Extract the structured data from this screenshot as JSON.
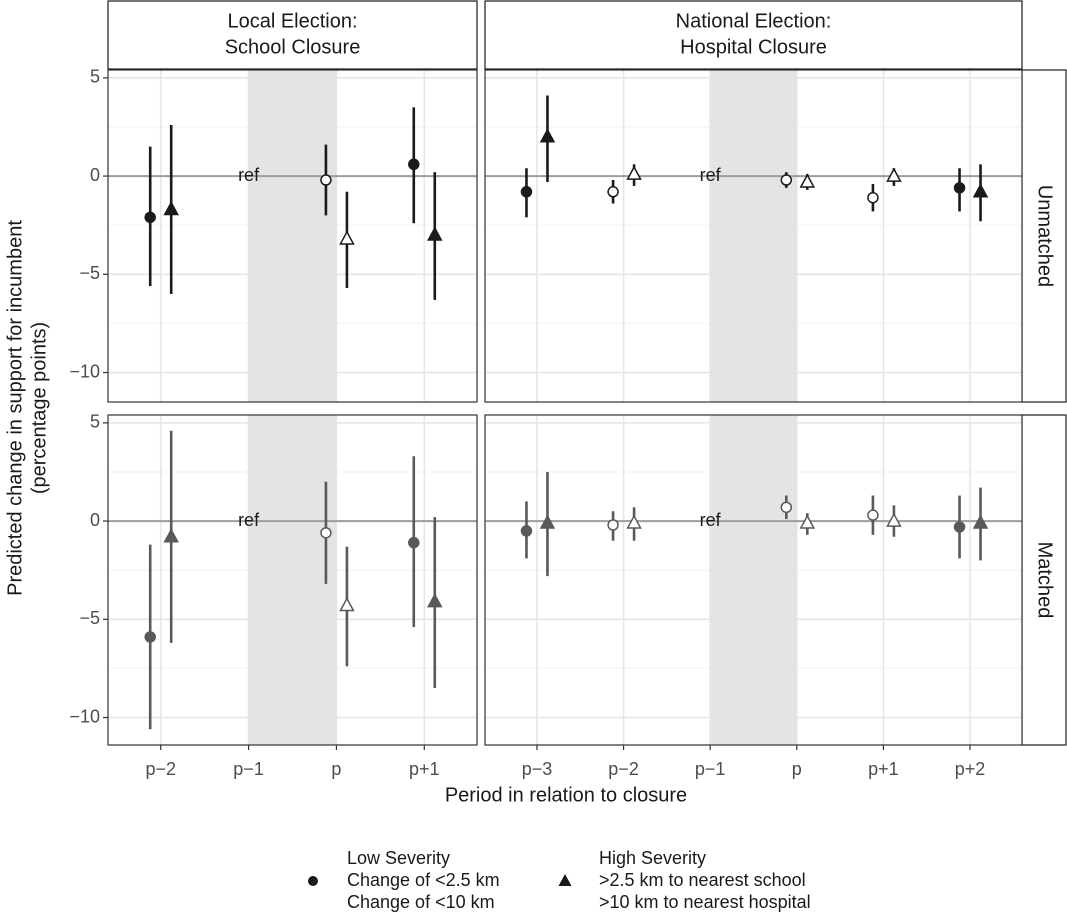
{
  "x_label": "Period in relation to closure",
  "y_label": [
    "Predicted change in support for incumbent",
    "(percentage points)"
  ],
  "legend": [
    {
      "shape": "circle",
      "lines": [
        "Low Severity",
        "Change of <2.5 km",
        "Change of <10 km"
      ]
    },
    {
      "shape": "triangle",
      "lines": [
        "High Severity",
        ">2.5 km to nearest school",
        ">10 km to nearest hospital"
      ]
    }
  ],
  "columns": [
    {
      "label": [
        "Local Election:",
        "School Closure"
      ],
      "categories": [
        "p−2",
        "p−1",
        "p",
        "p+1"
      ],
      "ref_index": 1
    },
    {
      "label": [
        "National Election:",
        "Hospital Closure"
      ],
      "categories": [
        "p−3",
        "p−2",
        "p−1",
        "p",
        "p+1",
        "p+2"
      ],
      "ref_index": 2
    }
  ],
  "rows": [
    {
      "label": "Unmatched",
      "color": "#1a1a1a",
      "ylim": [
        -11.5,
        5.4
      ],
      "hline": 0,
      "yticks": [
        {
          "value": -10,
          "label": "−10"
        },
        {
          "value": -5,
          "label": "−5"
        },
        0,
        5
      ],
      "minor_yticks": [
        -7.5,
        -2.5,
        2.5
      ]
    },
    {
      "label": "Matched",
      "color": "#595959",
      "ylim": [
        -11.4,
        5.4
      ],
      "hline": 0,
      "yticks": [
        {
          "value": -10,
          "label": "−10"
        },
        {
          "value": -5,
          "label": "−5"
        },
        0,
        5
      ],
      "minor_yticks": [
        -7.5,
        -2.5,
        2.5
      ]
    }
  ],
  "chart_data": [
    {
      "type": "errorbar",
      "ref_label": "ref",
      "series": [
        {
          "shape": "circle",
          "values": [
            -2.1,
            null,
            -0.2,
            0.6
          ],
          "lower": [
            -5.6,
            null,
            -2.0,
            -2.4
          ],
          "upper": [
            1.5,
            null,
            1.6,
            3.5
          ],
          "filled": [
            true,
            null,
            false,
            true
          ]
        },
        {
          "shape": "triangle",
          "values": [
            -1.7,
            null,
            -3.2,
            -3.0
          ],
          "lower": [
            -6.0,
            null,
            -5.7,
            -6.3
          ],
          "upper": [
            2.6,
            null,
            -0.8,
            0.2
          ],
          "filled": [
            true,
            null,
            false,
            true
          ]
        }
      ]
    },
    {
      "type": "errorbar",
      "ref_label": "ref",
      "series": [
        {
          "shape": "circle",
          "values": [
            -0.8,
            -0.8,
            null,
            -0.2,
            -1.1,
            -0.6
          ],
          "lower": [
            -2.1,
            -1.4,
            null,
            -0.6,
            -1.8,
            -1.8
          ],
          "upper": [
            0.4,
            -0.2,
            null,
            0.2,
            -0.4,
            0.4
          ],
          "filled": [
            true,
            false,
            null,
            false,
            false,
            true
          ]
        },
        {
          "shape": "triangle",
          "values": [
            2.0,
            0.1,
            null,
            -0.3,
            0.0,
            -0.8
          ],
          "lower": [
            -0.3,
            -0.5,
            null,
            -0.7,
            -0.5,
            -2.3
          ],
          "upper": [
            4.1,
            0.6,
            null,
            0.1,
            0.4,
            0.6
          ],
          "filled": [
            true,
            false,
            null,
            false,
            false,
            true
          ]
        }
      ]
    },
    {
      "type": "errorbar",
      "ref_label": "ref",
      "series": [
        {
          "shape": "circle",
          "values": [
            -5.9,
            null,
            -0.6,
            -1.1
          ],
          "lower": [
            -10.6,
            null,
            -3.2,
            -5.4
          ],
          "upper": [
            -1.2,
            null,
            2.0,
            3.3
          ],
          "filled": [
            true,
            null,
            false,
            true
          ]
        },
        {
          "shape": "triangle",
          "values": [
            -0.8,
            null,
            -4.3,
            -4.1
          ],
          "lower": [
            -6.2,
            null,
            -7.4,
            -8.5
          ],
          "upper": [
            4.6,
            null,
            -1.3,
            0.2
          ],
          "filled": [
            true,
            null,
            false,
            true
          ]
        }
      ]
    },
    {
      "type": "errorbar",
      "ref_label": "ref",
      "series": [
        {
          "shape": "circle",
          "values": [
            -0.5,
            -0.2,
            null,
            0.7,
            0.3,
            -0.3
          ],
          "lower": [
            -1.9,
            -1.0,
            null,
            0.1,
            -0.7,
            -1.9
          ],
          "upper": [
            1.0,
            0.5,
            null,
            1.3,
            1.3,
            1.3
          ],
          "filled": [
            true,
            false,
            null,
            false,
            false,
            true
          ]
        },
        {
          "shape": "triangle",
          "values": [
            -0.1,
            -0.1,
            null,
            -0.1,
            0.0,
            -0.1
          ],
          "lower": [
            -2.8,
            -1.0,
            null,
            -0.7,
            -0.8,
            -2.0
          ],
          "upper": [
            2.5,
            0.7,
            null,
            0.4,
            0.8,
            1.7
          ],
          "filled": [
            true,
            false,
            null,
            false,
            false,
            true
          ]
        }
      ]
    }
  ]
}
